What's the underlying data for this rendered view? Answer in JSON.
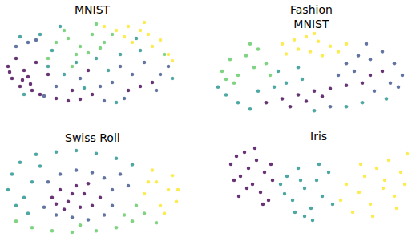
{
  "chart_data": [
    {
      "type": "scatter",
      "title": "MNIST",
      "tick_labels": false,
      "xlim": [
        0,
        230
      ],
      "ylim": [
        0,
        116
      ],
      "series": [
        {
          "color": "#440154",
          "x": [
            10,
            15,
            20,
            25,
            30,
            35,
            40,
            45,
            12,
            28,
            38,
            50,
            70,
            85,
            100,
            115,
            90,
            160,
            175,
            190,
            60,
            110
          ],
          "values": [
            55,
            40,
            65,
            30,
            50,
            42,
            25,
            60,
            48,
            38,
            33,
            20,
            15,
            12,
            14,
            20,
            25,
            25,
            30,
            35,
            45,
            50
          ]
        },
        {
          "color": "#3b528b",
          "x": [
            20,
            35,
            55,
            150,
            165,
            180,
            200,
            210,
            140,
            125,
            70,
            195,
            130,
            155,
            45,
            100
          ],
          "values": [
            80,
            85,
            18,
            55,
            45,
            60,
            45,
            55,
            35,
            30,
            30,
            25,
            12,
            15,
            88,
            40
          ]
        },
        {
          "color": "#21918c",
          "x": [
            25,
            50,
            75,
            60,
            80,
            95,
            120,
            135,
            150,
            175,
            105,
            215,
            145,
            65,
            170,
            30
          ],
          "values": [
            92,
            95,
            105,
            55,
            45,
            60,
            65,
            50,
            70,
            75,
            28,
            40,
            10,
            75,
            90,
            20
          ]
        },
        {
          "color": "#5ec962",
          "x": [
            70,
            85,
            100,
            115,
            130,
            95,
            110,
            125,
            80,
            60,
            140,
            120,
            90,
            205
          ],
          "values": [
            85,
            90,
            80,
            95,
            85,
            70,
            72,
            78,
            100,
            65,
            95,
            108,
            55,
            70
          ]
        },
        {
          "color": "#fde725",
          "x": [
            145,
            160,
            175,
            185,
            165,
            190,
            200,
            210,
            215,
            155,
            130,
            180
          ],
          "values": [
            100,
            105,
            100,
            95,
            85,
            80,
            88,
            70,
            62,
            92,
            105,
            110
          ]
        }
      ]
    },
    {
      "type": "scatter",
      "title": "Fashion\nMNIST",
      "tick_labels": false,
      "xlim": [
        0,
        252
      ],
      "ylim": [
        0,
        110
      ],
      "series": [
        {
          "color": "#fde725",
          "x": [
            90,
            105,
            120,
            135,
            150,
            110,
            125,
            140,
            160,
            95,
            170,
            130
          ],
          "values": [
            95,
            100,
            104,
            98,
            92,
            88,
            85,
            80,
            85,
            82,
            95,
            108
          ]
        },
        {
          "color": "#5ec962",
          "x": [
            15,
            25,
            35,
            45,
            55,
            30,
            60,
            70,
            20,
            50,
            75
          ],
          "values": [
            60,
            75,
            55,
            80,
            65,
            45,
            88,
            70,
            50,
            95,
            55
          ]
        },
        {
          "color": "#440154",
          "x": [
            70,
            90,
            110,
            130,
            150,
            170,
            190,
            120,
            100,
            140,
            200,
            215
          ],
          "values": [
            20,
            25,
            30,
            35,
            38,
            42,
            45,
            22,
            15,
            28,
            55,
            60
          ]
        },
        {
          "color": "#3b528b",
          "x": [
            170,
            185,
            200,
            215,
            230,
            240,
            225,
            205,
            180,
            195,
            235,
            160,
            150
          ],
          "values": [
            70,
            80,
            75,
            85,
            70,
            55,
            45,
            35,
            60,
            95,
            40,
            55,
            15
          ]
        },
        {
          "color": "#21918c",
          "x": [
            10,
            20,
            35,
            50,
            60,
            80,
            95,
            115,
            130,
            170,
            190,
            220,
            85,
            110
          ],
          "values": [
            40,
            30,
            20,
            12,
            35,
            40,
            45,
            50,
            10,
            15,
            20,
            25,
            60,
            65
          ]
        }
      ]
    },
    {
      "type": "scatter",
      "title": "Swiss Roll",
      "tick_labels": false,
      "xlim": [
        0,
        230
      ],
      "ylim": [
        0,
        116
      ],
      "series": [
        {
          "color": "#440154",
          "x": [
            65,
            75,
            85,
            95,
            105,
            115,
            125,
            80,
            100,
            90,
            110,
            70
          ],
          "values": [
            50,
            60,
            45,
            65,
            55,
            40,
            50,
            35,
            38,
            55,
            68,
            42
          ]
        },
        {
          "color": "#3b528b",
          "x": [
            60,
            75,
            95,
            115,
            130,
            140,
            140,
            130,
            110,
            90,
            70,
            55,
            150,
            160
          ],
          "values": [
            70,
            80,
            85,
            82,
            75,
            60,
            40,
            28,
            22,
            25,
            28,
            38,
            80,
            65
          ]
        },
        {
          "color": "#21918c",
          "x": [
            10,
            15,
            25,
            45,
            70,
            95,
            120,
            145,
            165,
            30,
            40,
            20,
            50,
            35
          ],
          "values": [
            60,
            80,
            95,
            105,
            108,
            110,
            106,
            100,
            92,
            50,
            70,
            40,
            90,
            30
          ]
        },
        {
          "color": "#5ec962",
          "x": [
            20,
            40,
            65,
            90,
            120,
            145,
            165,
            180,
            170,
            155,
            195,
            100
          ],
          "values": [
            20,
            12,
            8,
            6,
            8,
            12,
            20,
            30,
            40,
            28,
            18,
            15
          ]
        },
        {
          "color": "#fde725",
          "x": [
            180,
            195,
            210,
            220,
            200,
            190,
            215,
            205,
            185,
            222
          ],
          "values": [
            55,
            70,
            60,
            45,
            40,
            85,
            78,
            30,
            70,
            60
          ]
        }
      ]
    },
    {
      "type": "scatter",
      "title": "Iris",
      "tick_labels": false,
      "xlim": [
        0,
        234
      ],
      "ylim": [
        0,
        100
      ],
      "series": [
        {
          "color": "#440154",
          "x": [
            8,
            15,
            20,
            25,
            30,
            35,
            40,
            45,
            50,
            55,
            60,
            28,
            18,
            38,
            48,
            12,
            58
          ],
          "values": [
            75,
            85,
            60,
            90,
            70,
            50,
            80,
            40,
            65,
            30,
            55,
            45,
            35,
            95,
            25,
            55,
            75
          ]
        },
        {
          "color": "#21918c",
          "x": [
            70,
            78,
            85,
            92,
            100,
            108,
            115,
            122,
            130,
            100,
            88,
            118,
            135,
            75,
            95,
            110
          ],
          "values": [
            50,
            60,
            30,
            70,
            45,
            20,
            55,
            35,
            65,
            10,
            15,
            75,
            25,
            38,
            55,
            5
          ]
        },
        {
          "color": "#fde725",
          "x": [
            145,
            152,
            160,
            168,
            175,
            182,
            190,
            198,
            205,
            212,
            220,
            228,
            185,
            200,
            215,
            170,
            225
          ],
          "values": [
            30,
            50,
            15,
            40,
            60,
            25,
            70,
            45,
            80,
            35,
            65,
            88,
            10,
            55,
            20,
            75,
            50
          ]
        }
      ]
    }
  ]
}
